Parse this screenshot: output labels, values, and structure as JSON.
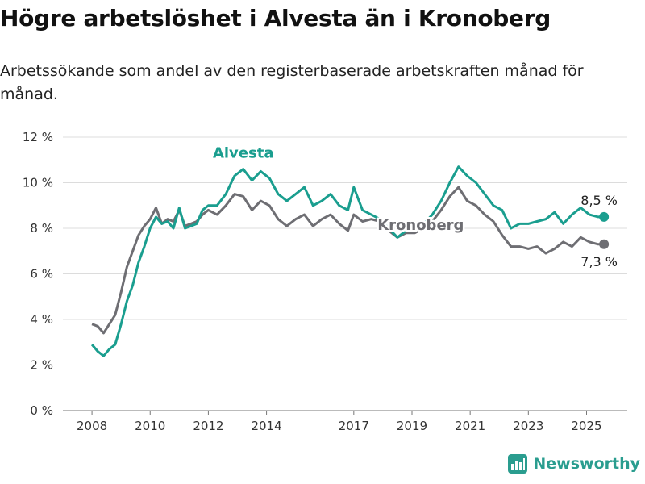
{
  "title": "Högre arbetslöshet i Alvesta än i Kronoberg",
  "subtitle": "Arbetssökande som andel av den registerbaserade arbetskraften månad för månad.",
  "brand": "Newsworthy",
  "colors": {
    "alvesta": "#1a9e8f",
    "kronoberg": "#6e6e73",
    "grid": "#dcdcdc",
    "axis": "#555555"
  },
  "chart_data": {
    "type": "line",
    "ylim": [
      0,
      12
    ],
    "y_ticks": [
      0,
      2,
      4,
      6,
      8,
      10,
      12
    ],
    "y_tick_labels": [
      "0 %",
      "2 %",
      "4 %",
      "6 %",
      "8 %",
      "10 %",
      "12 %"
    ],
    "x_ticks": [
      2008,
      2010,
      2012,
      2014,
      2017,
      2019,
      2021,
      2023,
      2025
    ],
    "x_tick_labels": [
      "2008",
      "2010",
      "2012",
      "2014",
      "2017",
      "2019",
      "2021",
      "2023",
      "2025"
    ],
    "series": [
      {
        "name": "Alvesta",
        "end_label": "8,5 %",
        "points": [
          [
            2008.0,
            2.9
          ],
          [
            2008.2,
            2.6
          ],
          [
            2008.4,
            2.4
          ],
          [
            2008.6,
            2.7
          ],
          [
            2008.8,
            2.9
          ],
          [
            2009.0,
            3.8
          ],
          [
            2009.2,
            4.8
          ],
          [
            2009.4,
            5.5
          ],
          [
            2009.6,
            6.5
          ],
          [
            2009.8,
            7.2
          ],
          [
            2010.0,
            8.0
          ],
          [
            2010.2,
            8.5
          ],
          [
            2010.4,
            8.2
          ],
          [
            2010.6,
            8.3
          ],
          [
            2010.8,
            8.0
          ],
          [
            2011.0,
            8.9
          ],
          [
            2011.2,
            8.0
          ],
          [
            2011.4,
            8.1
          ],
          [
            2011.6,
            8.2
          ],
          [
            2011.8,
            8.8
          ],
          [
            2012.0,
            9.0
          ],
          [
            2012.3,
            9.0
          ],
          [
            2012.6,
            9.5
          ],
          [
            2012.9,
            10.3
          ],
          [
            2013.2,
            10.6
          ],
          [
            2013.5,
            10.1
          ],
          [
            2013.8,
            10.5
          ],
          [
            2014.1,
            10.2
          ],
          [
            2014.4,
            9.5
          ],
          [
            2014.7,
            9.2
          ],
          [
            2015.0,
            9.5
          ],
          [
            2015.3,
            9.8
          ],
          [
            2015.6,
            9.0
          ],
          [
            2015.9,
            9.2
          ],
          [
            2016.2,
            9.5
          ],
          [
            2016.5,
            9.0
          ],
          [
            2016.8,
            8.8
          ],
          [
            2017.0,
            9.8
          ],
          [
            2017.3,
            8.8
          ],
          [
            2017.6,
            8.6
          ],
          [
            2017.9,
            8.4
          ],
          [
            2018.2,
            8.0
          ],
          [
            2018.5,
            7.6
          ],
          [
            2018.8,
            7.9
          ],
          [
            2019.1,
            8.0
          ],
          [
            2019.4,
            8.2
          ],
          [
            2019.7,
            8.6
          ],
          [
            2020.0,
            9.2
          ],
          [
            2020.3,
            10.0
          ],
          [
            2020.6,
            10.7
          ],
          [
            2020.9,
            10.3
          ],
          [
            2021.2,
            10.0
          ],
          [
            2021.5,
            9.5
          ],
          [
            2021.8,
            9.0
          ],
          [
            2022.1,
            8.8
          ],
          [
            2022.4,
            8.0
          ],
          [
            2022.7,
            8.2
          ],
          [
            2023.0,
            8.2
          ],
          [
            2023.3,
            8.3
          ],
          [
            2023.6,
            8.4
          ],
          [
            2023.9,
            8.7
          ],
          [
            2024.2,
            8.2
          ],
          [
            2024.5,
            8.6
          ],
          [
            2024.8,
            8.9
          ],
          [
            2025.1,
            8.6
          ],
          [
            2025.4,
            8.5
          ],
          [
            2025.6,
            8.5
          ]
        ]
      },
      {
        "name": "Kronoberg",
        "end_label": "7,3 %",
        "points": [
          [
            2008.0,
            3.8
          ],
          [
            2008.2,
            3.7
          ],
          [
            2008.4,
            3.4
          ],
          [
            2008.6,
            3.8
          ],
          [
            2008.8,
            4.2
          ],
          [
            2009.0,
            5.2
          ],
          [
            2009.2,
            6.3
          ],
          [
            2009.4,
            7.0
          ],
          [
            2009.6,
            7.7
          ],
          [
            2009.8,
            8.1
          ],
          [
            2010.0,
            8.4
          ],
          [
            2010.2,
            8.9
          ],
          [
            2010.4,
            8.2
          ],
          [
            2010.6,
            8.4
          ],
          [
            2010.8,
            8.3
          ],
          [
            2011.0,
            8.8
          ],
          [
            2011.2,
            8.1
          ],
          [
            2011.4,
            8.2
          ],
          [
            2011.6,
            8.3
          ],
          [
            2011.8,
            8.6
          ],
          [
            2012.0,
            8.8
          ],
          [
            2012.3,
            8.6
          ],
          [
            2012.6,
            9.0
          ],
          [
            2012.9,
            9.5
          ],
          [
            2013.2,
            9.4
          ],
          [
            2013.5,
            8.8
          ],
          [
            2013.8,
            9.2
          ],
          [
            2014.1,
            9.0
          ],
          [
            2014.4,
            8.4
          ],
          [
            2014.7,
            8.1
          ],
          [
            2015.0,
            8.4
          ],
          [
            2015.3,
            8.6
          ],
          [
            2015.6,
            8.1
          ],
          [
            2015.9,
            8.4
          ],
          [
            2016.2,
            8.6
          ],
          [
            2016.5,
            8.2
          ],
          [
            2016.8,
            7.9
          ],
          [
            2017.0,
            8.6
          ],
          [
            2017.3,
            8.3
          ],
          [
            2017.6,
            8.4
          ],
          [
            2017.9,
            8.3
          ],
          [
            2018.2,
            7.9
          ],
          [
            2018.5,
            7.6
          ],
          [
            2018.8,
            7.8
          ],
          [
            2019.1,
            7.8
          ],
          [
            2019.4,
            8.0
          ],
          [
            2019.7,
            8.3
          ],
          [
            2020.0,
            8.8
          ],
          [
            2020.3,
            9.4
          ],
          [
            2020.6,
            9.8
          ],
          [
            2020.9,
            9.2
          ],
          [
            2021.2,
            9.0
          ],
          [
            2021.5,
            8.6
          ],
          [
            2021.8,
            8.3
          ],
          [
            2022.1,
            7.7
          ],
          [
            2022.4,
            7.2
          ],
          [
            2022.7,
            7.2
          ],
          [
            2023.0,
            7.1
          ],
          [
            2023.3,
            7.2
          ],
          [
            2023.6,
            6.9
          ],
          [
            2023.9,
            7.1
          ],
          [
            2024.2,
            7.4
          ],
          [
            2024.5,
            7.2
          ],
          [
            2024.8,
            7.6
          ],
          [
            2025.1,
            7.4
          ],
          [
            2025.4,
            7.3
          ],
          [
            2025.6,
            7.3
          ]
        ]
      }
    ],
    "annotations": [
      {
        "text": "Alvesta",
        "series": "Alvesta"
      },
      {
        "text": "Kronoberg",
        "series": "Kronoberg"
      }
    ]
  }
}
